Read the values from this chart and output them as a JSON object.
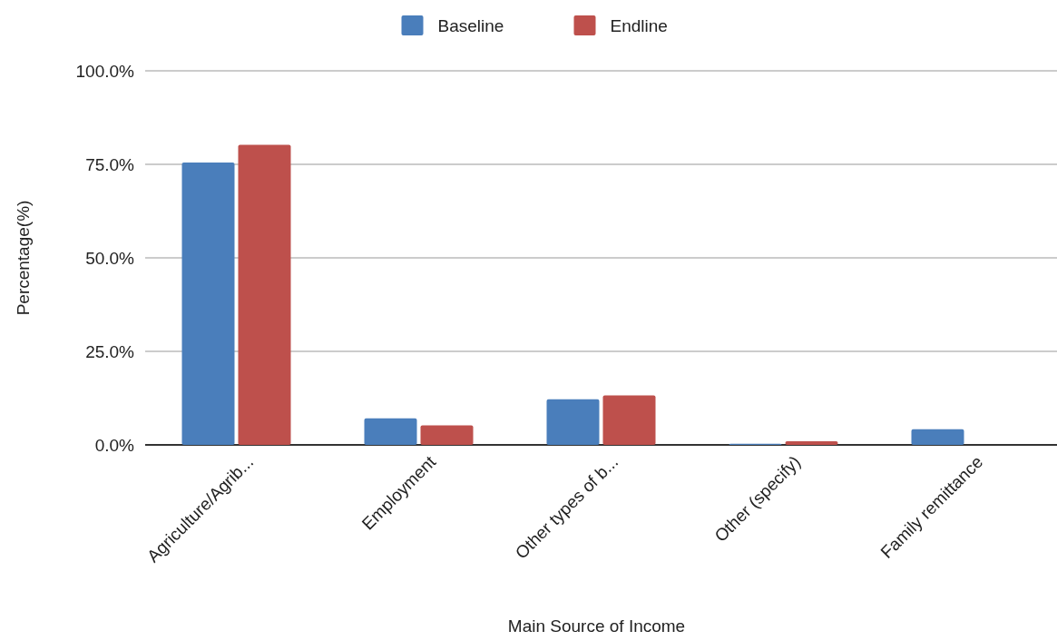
{
  "chart_data": {
    "type": "bar",
    "xlabel": "Main Source of Income",
    "ylabel": "Percentage(%)",
    "categories": [
      "Agriculture/Agrib...",
      "Employment",
      "Other types of b...",
      "Other (specify)",
      "Family remittance"
    ],
    "series": [
      {
        "name": "Baseline",
        "color": "#4a7ebb",
        "values": [
          75.5,
          7.1,
          12.2,
          0.3,
          4.2
        ]
      },
      {
        "name": "Endline",
        "color": "#be504c",
        "values": [
          80.2,
          5.2,
          13.2,
          1.0,
          0
        ]
      }
    ],
    "ylim": [
      0,
      100
    ],
    "yticks": [
      {
        "value": 0,
        "label": "0.0%"
      },
      {
        "value": 25,
        "label": "25.0%"
      },
      {
        "value": 50,
        "label": "50.0%"
      },
      {
        "value": 75,
        "label": "75.0%"
      },
      {
        "value": 100,
        "label": "100.0%"
      }
    ],
    "grid": "y",
    "legend": "top"
  }
}
